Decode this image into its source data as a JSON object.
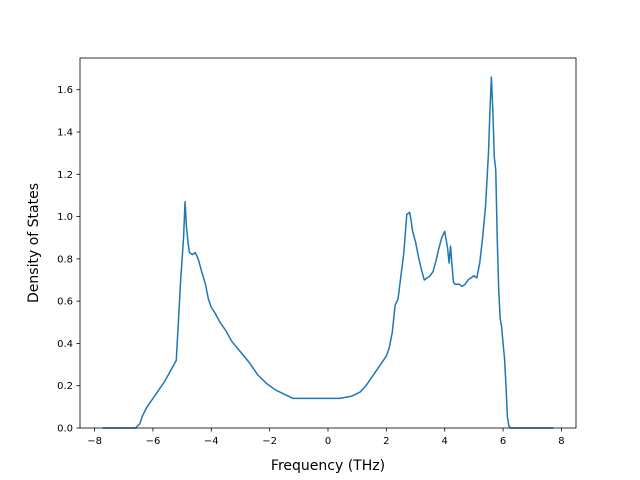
{
  "chart_data": {
    "type": "line",
    "xlabel": "Frequency (THz)",
    "ylabel": "Density of States",
    "xlim": [
      -8.5,
      8.5
    ],
    "ylim": [
      0.0,
      1.75
    ],
    "xticks": [
      -8,
      -6,
      -4,
      -2,
      0,
      2,
      4,
      6,
      8
    ],
    "xtick_labels": [
      "−8",
      "−6",
      "−4",
      "−2",
      "0",
      "2",
      "4",
      "6",
      "8"
    ],
    "yticks": [
      0.0,
      0.2,
      0.4,
      0.6,
      0.8,
      1.0,
      1.2,
      1.4,
      1.6
    ],
    "ytick_labels": [
      "0.0",
      "0.2",
      "0.4",
      "0.6",
      "0.8",
      "1.0",
      "1.2",
      "1.4",
      "1.6"
    ],
    "grid": false,
    "series": [
      {
        "color": "#1f77b4",
        "x": [
          -7.7,
          -6.6,
          -6.45,
          -6.35,
          -6.2,
          -6.0,
          -5.8,
          -5.6,
          -5.4,
          -5.2,
          -5.05,
          -4.95,
          -4.9,
          -4.85,
          -4.8,
          -4.75,
          -4.65,
          -4.55,
          -4.45,
          -4.35,
          -4.2,
          -4.1,
          -4.0,
          -3.9,
          -3.7,
          -3.5,
          -3.3,
          -3.0,
          -2.7,
          -2.4,
          -2.1,
          -1.8,
          -1.5,
          -1.2,
          -0.8,
          -0.4,
          0.0,
          0.4,
          0.8,
          1.1,
          1.3,
          1.6,
          1.8,
          2.0,
          2.1,
          2.2,
          2.3,
          2.4,
          2.5,
          2.6,
          2.7,
          2.8,
          2.85,
          2.9,
          3.0,
          3.1,
          3.2,
          3.3,
          3.4,
          3.5,
          3.6,
          3.7,
          3.8,
          3.9,
          4.0,
          4.1,
          4.15,
          4.2,
          4.25,
          4.3,
          4.35,
          4.4,
          4.5,
          4.6,
          4.7,
          4.8,
          4.9,
          5.0,
          5.1,
          5.2,
          5.3,
          5.4,
          5.5,
          5.55,
          5.6,
          5.65,
          5.7,
          5.75,
          5.8,
          5.85,
          5.9,
          5.95,
          6.0,
          6.05,
          6.1,
          6.15,
          6.2,
          6.25,
          6.3,
          6.35,
          6.4,
          6.5,
          6.7,
          7.7
        ],
        "y": [
          0.0,
          0.0,
          0.02,
          0.06,
          0.1,
          0.14,
          0.18,
          0.22,
          0.27,
          0.32,
          0.7,
          0.9,
          1.07,
          0.95,
          0.88,
          0.83,
          0.82,
          0.83,
          0.8,
          0.75,
          0.68,
          0.61,
          0.57,
          0.55,
          0.5,
          0.46,
          0.41,
          0.36,
          0.31,
          0.25,
          0.21,
          0.18,
          0.16,
          0.14,
          0.14,
          0.14,
          0.14,
          0.14,
          0.15,
          0.17,
          0.2,
          0.26,
          0.3,
          0.34,
          0.38,
          0.45,
          0.58,
          0.61,
          0.72,
          0.83,
          1.01,
          1.02,
          0.98,
          0.93,
          0.88,
          0.81,
          0.75,
          0.7,
          0.71,
          0.72,
          0.74,
          0.79,
          0.85,
          0.9,
          0.93,
          0.85,
          0.78,
          0.86,
          0.77,
          0.69,
          0.68,
          0.68,
          0.68,
          0.67,
          0.68,
          0.7,
          0.71,
          0.72,
          0.71,
          0.78,
          0.9,
          1.05,
          1.3,
          1.5,
          1.66,
          1.5,
          1.28,
          1.22,
          0.9,
          0.66,
          0.52,
          0.48,
          0.4,
          0.33,
          0.2,
          0.05,
          0.01,
          0.0,
          0.0,
          0.0,
          0.0,
          0.0,
          0.0,
          0.0
        ]
      }
    ]
  }
}
